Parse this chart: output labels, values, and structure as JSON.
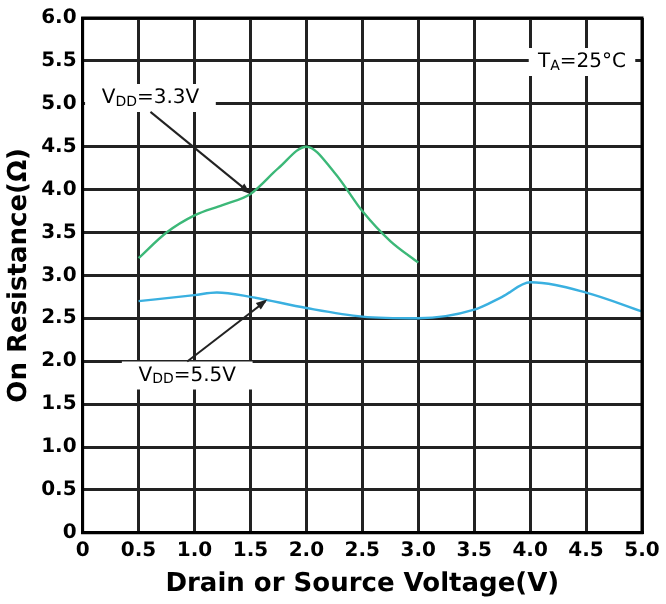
{
  "chart_data": {
    "type": "line",
    "xlabel": "Drain or Source Voltage(V)",
    "ylabel": "On Resistance(Ω)",
    "series": [
      {
        "color": "#3cb878",
        "x": [
          0.5,
          0.75,
          1.0,
          1.25,
          1.5,
          1.75,
          2.0,
          2.25,
          2.5,
          2.75,
          3.0
        ],
        "values": [
          3.2,
          3.5,
          3.7,
          3.82,
          3.95,
          4.25,
          4.5,
          4.2,
          3.75,
          3.4,
          3.15
        ]
      },
      {
        "color": "#3ab0e0",
        "x": [
          0.5,
          1.0,
          1.2,
          1.5,
          2.0,
          2.5,
          3.0,
          3.5,
          3.75,
          4.0,
          4.5,
          5.0
        ],
        "values": [
          2.7,
          2.77,
          2.8,
          2.75,
          2.62,
          2.52,
          2.5,
          2.6,
          2.75,
          2.92,
          2.8,
          2.58
        ]
      }
    ],
    "annotations": [
      {
        "text": "V$_{DD}$=3.3V",
        "x": 1.5,
        "y": 3.95
      },
      {
        "text": "V$_{DD}$=5.5V",
        "x": 1.65,
        "y": 2.72
      },
      "T$_{A}$=25°C"
    ],
    "xlim": [
      0,
      5
    ],
    "xticks": [
      0,
      {
        "value": 0.5,
        "label": "0.5"
      },
      {
        "value": 1,
        "label": "1.0"
      },
      {
        "value": 1.5,
        "label": "1.5"
      },
      {
        "value": 2,
        "label": "2.0"
      },
      {
        "value": 2.5,
        "label": "2.5"
      },
      {
        "value": 3,
        "label": "3.0"
      },
      {
        "value": 3.5,
        "label": "3.5"
      },
      {
        "value": 4,
        "label": "4.0"
      },
      {
        "value": 4.5,
        "label": "4.5"
      },
      {
        "value": 5,
        "label": "5.0"
      }
    ],
    "ylim": [
      0,
      6
    ],
    "yticks": [
      0,
      {
        "value": 0.5,
        "label": "0.5"
      },
      {
        "value": 1,
        "label": "1.0"
      },
      {
        "value": 1.5,
        "label": "1.5"
      },
      {
        "value": 2,
        "label": "2.0"
      },
      {
        "value": 2.5,
        "label": "2.5"
      },
      {
        "value": 3,
        "label": "3.0"
      },
      {
        "value": 3.5,
        "label": "3.5"
      },
      {
        "value": 4,
        "label": "4.0"
      },
      {
        "value": 4.5,
        "label": "4.5"
      },
      {
        "value": 5,
        "label": "5.0"
      },
      {
        "value": 5.5,
        "label": "5.5"
      },
      {
        "value": 6,
        "label": "6.0"
      }
    ],
    "grid": true,
    "marker": "none",
    "line_style": "solid"
  }
}
